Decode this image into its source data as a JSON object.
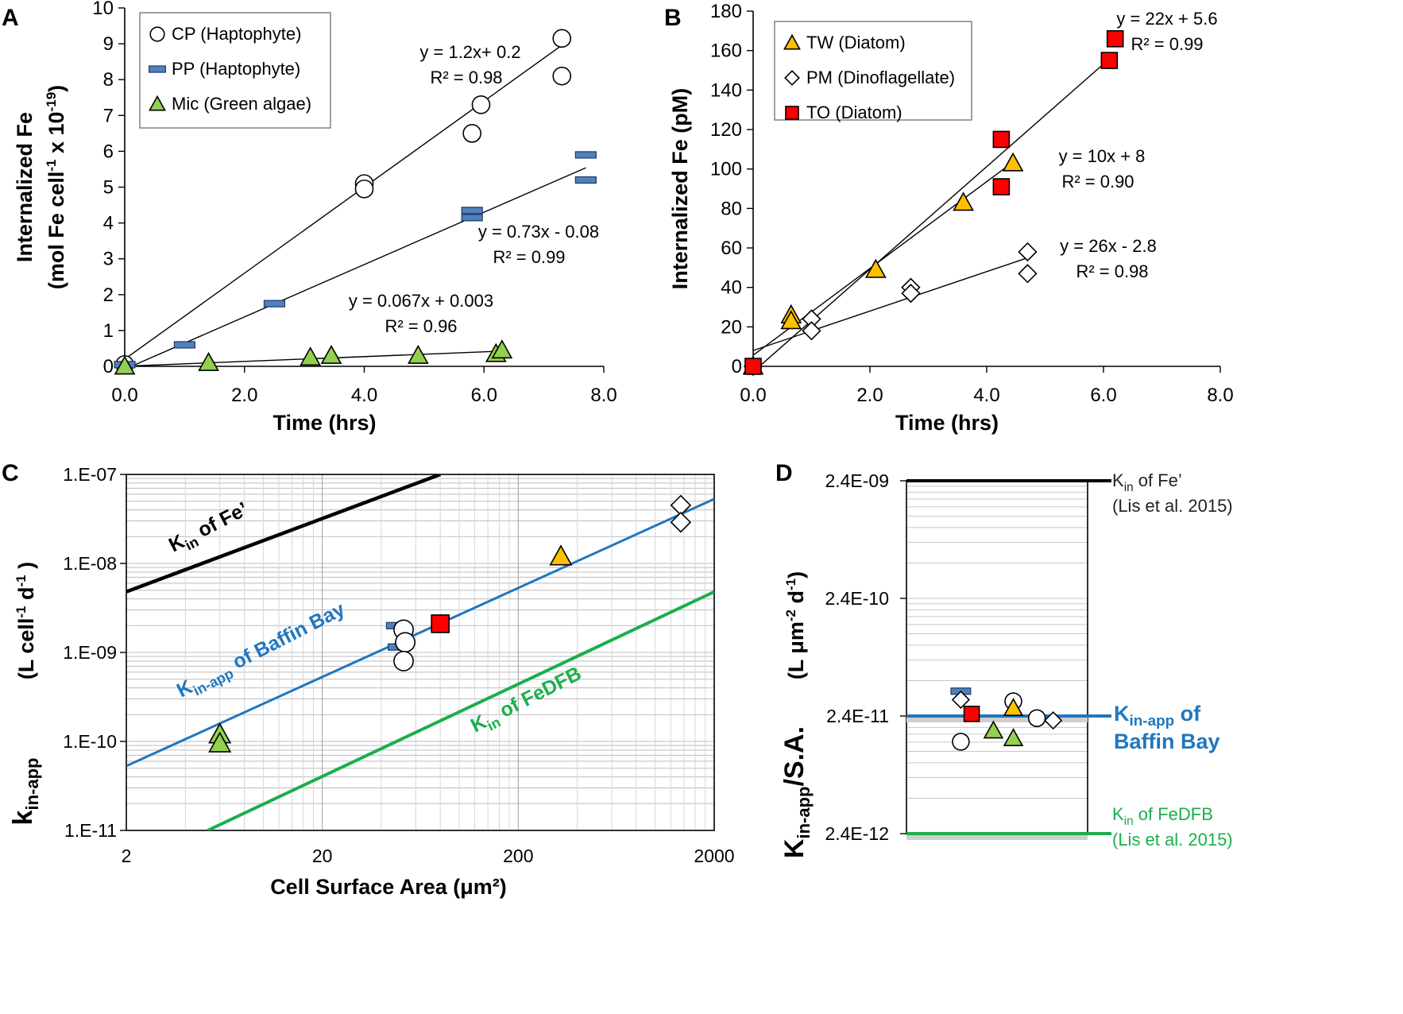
{
  "chart_data": [
    {
      "id": "A",
      "type": "scatter",
      "panel_label": "A",
      "xlabel": "Time (hrs)",
      "ylabel_main": "Internalized Fe",
      "ylabel_sub": "(mol Fe cell",
      "ylabel_sub_sup": "-1",
      "ylabel_sub_tail": "  x 10",
      "ylabel_sub_sup2": "-19",
      "ylabel_sub_end": ")",
      "xlim": [
        0,
        8
      ],
      "ylim": [
        0,
        10
      ],
      "xticks": [
        0,
        2,
        4,
        6,
        8
      ],
      "xtick_labels": [
        "0.0",
        "2.0",
        "4.0",
        "6.0",
        "8.0"
      ],
      "yticks": [
        0,
        1,
        2,
        3,
        4,
        5,
        6,
        7,
        8,
        9,
        10
      ],
      "ytick_labels": [
        "0",
        "1",
        "2",
        "3",
        "4",
        "5",
        "6",
        "7",
        "8",
        "9",
        "10"
      ],
      "series": [
        {
          "name": "CP (Haptophyte)",
          "marker": "circle",
          "fill": "#ffffff",
          "x": [
            0.0,
            4.0,
            4.0,
            5.8,
            5.95,
            7.3,
            7.3
          ],
          "y": [
            0.05,
            5.1,
            4.95,
            6.5,
            7.3,
            9.15,
            8.1
          ],
          "fit": {
            "slope": 1.2,
            "intercept": 0.2,
            "xmin": 0.0,
            "xmax": 7.3
          },
          "eq": "y = 1.2x+ 0.2",
          "r2": "R² = 0.98"
        },
        {
          "name": "PP (Haptophyte)",
          "marker": "dash",
          "fill": "#4f81bd",
          "x": [
            0.0,
            1.0,
            2.5,
            5.8,
            5.8,
            7.7,
            7.7
          ],
          "y": [
            0.05,
            0.6,
            1.75,
            4.35,
            4.15,
            5.9,
            5.2
          ],
          "fit": {
            "slope": 0.73,
            "intercept": -0.08,
            "xmin": 0.0,
            "xmax": 7.7
          },
          "eq": "y = 0.73x - 0.08",
          "r2": "R² = 0.99"
        },
        {
          "name": "Mic (Green algae)",
          "marker": "triangle",
          "fill": "#92d050",
          "x": [
            0.0,
            1.4,
            3.1,
            3.45,
            4.9,
            6.2,
            6.3
          ],
          "y": [
            0.0,
            0.1,
            0.25,
            0.3,
            0.3,
            0.35,
            0.45
          ],
          "fit": {
            "slope": 0.067,
            "intercept": 0.003,
            "xmin": 0.0,
            "xmax": 6.3
          },
          "eq": "y = 0.067x + 0.003",
          "r2": "R² = 0.96"
        }
      ]
    },
    {
      "id": "B",
      "type": "scatter",
      "panel_label": "B",
      "xlabel": "Time (hrs)",
      "ylabel_main": "Internalized  Fe (pM)",
      "xlim": [
        0,
        8
      ],
      "ylim": [
        0,
        180
      ],
      "xticks": [
        0,
        2,
        4,
        6,
        8
      ],
      "xtick_labels": [
        "0.0",
        "2.0",
        "4.0",
        "6.0",
        "8.0"
      ],
      "yticks": [
        0,
        20,
        40,
        60,
        80,
        100,
        120,
        140,
        160,
        180
      ],
      "ytick_labels": [
        "0",
        "20",
        "40",
        "60",
        "80",
        "100",
        "120",
        "140",
        "160",
        "180"
      ],
      "series": [
        {
          "name": "TW (Diatom)",
          "marker": "triangle",
          "fill": "#ffc000",
          "x": [
            0.0,
            0.65,
            0.65,
            2.1,
            3.6,
            4.45
          ],
          "y": [
            0.0,
            26,
            23,
            49,
            83,
            103
          ],
          "fit": {
            "slope": 22,
            "intercept": 5.6,
            "xmin": 0.0,
            "xmax": 4.45
          },
          "eq": "y = 22x + 5.6",
          "r2": "R² = 0.99"
        },
        {
          "name": "PM (Dinoflagellate)",
          "marker": "diamond",
          "fill": "#ffffff",
          "x": [
            0.0,
            1.0,
            1.0,
            2.7,
            2.7,
            4.7,
            4.7
          ],
          "y": [
            0.0,
            24,
            18,
            40,
            37,
            58,
            47
          ],
          "fit": {
            "slope": 10,
            "intercept": 8,
            "xmin": 0.0,
            "xmax": 4.7
          },
          "eq": "y = 10x + 8",
          "r2": "R² = 0.90"
        },
        {
          "name": "TO (Diatom)",
          "marker": "square",
          "fill": "#ff0000",
          "x": [
            0.0,
            4.25,
            4.25,
            6.1,
            6.2
          ],
          "y": [
            0.0,
            115,
            91,
            155,
            166
          ],
          "fit": {
            "slope": 26,
            "intercept": -2.8,
            "xmin": 0.0,
            "xmax": 6.1
          },
          "eq": "y = 26x - 2.8",
          "r2": "R² = 0.98"
        }
      ]
    },
    {
      "id": "C",
      "type": "scatter",
      "panel_label": "C",
      "scale": "log-log",
      "xlabel": "Cell Surface Area (μm²)",
      "ylabel_main": "k",
      "ylabel_main_sub": "in-app",
      "ylabel_unit": "(L cell",
      "ylabel_unit_sup": "-1",
      "ylabel_unit_mid": " d",
      "ylabel_unit_sup2": "-1",
      "ylabel_unit_end": " )",
      "xlim": [
        2,
        2000
      ],
      "ylim": [
        1e-11,
        1e-07
      ],
      "xtick_labels": [
        "2",
        "20",
        "200",
        "2000"
      ],
      "xtick_values": [
        2,
        20,
        200,
        2000
      ],
      "ytick_labels": [
        "1.E-11",
        "1.E-10",
        "1.E-09",
        "1.E-08",
        "1.E-07"
      ],
      "ytick_values": [
        1e-11,
        1e-10,
        1e-09,
        1e-08,
        1e-07
      ],
      "lines": [
        {
          "name": "Kin of Fe'",
          "color": "#000000",
          "x": [
            2,
            80
          ],
          "y": [
            4.8e-09,
            1e-07
          ],
          "label_main": "K",
          "label_sub": "in",
          "label_tail": " of Fe’"
        },
        {
          "name": "Kin-app of Baffin Bay",
          "color": "#1f77bf",
          "x": [
            2,
            2000
          ],
          "y": [
            5.3e-11,
            5.3e-08
          ],
          "label_main": "K",
          "label_sub": "in-app",
          "label_tail": " of Baffin Bay"
        },
        {
          "name": "Kin of FeDFB",
          "color": "#1aaf4b",
          "x": [
            5.2,
            2000
          ],
          "y": [
            1e-11,
            4.8e-09
          ],
          "label_main": "K",
          "label_sub": "in",
          "label_tail": " of FeDFB"
        }
      ],
      "points": [
        {
          "marker": "triangle",
          "fill": "#92d050",
          "x": 6,
          "y": 1.2e-10
        },
        {
          "marker": "triangle",
          "fill": "#92d050",
          "x": 6,
          "y": 9.5e-11
        },
        {
          "marker": "dash",
          "fill": "#4f81bd",
          "x": 48,
          "y": 2e-09
        },
        {
          "marker": "dash",
          "fill": "#4f81bd",
          "x": 49,
          "y": 1.15e-09
        },
        {
          "marker": "circle",
          "fill": "#ffffff",
          "x": 52,
          "y": 1.8e-09
        },
        {
          "marker": "circle",
          "fill": "#ffffff",
          "x": 53,
          "y": 1.3e-09
        },
        {
          "marker": "circle",
          "fill": "#ffffff",
          "x": 52,
          "y": 8e-10
        },
        {
          "marker": "square",
          "fill": "#ff0000",
          "x": 80,
          "y": 2.1e-09
        },
        {
          "marker": "triangle",
          "fill": "#ffc000",
          "x": 330,
          "y": 1.2e-08
        },
        {
          "marker": "diamond",
          "fill": "#ffffff",
          "x": 1350,
          "y": 4.5e-08
        },
        {
          "marker": "diamond",
          "fill": "#ffffff",
          "x": 1350,
          "y": 2.9e-08
        }
      ]
    },
    {
      "id": "D",
      "type": "scatter",
      "panel_label": "D",
      "scale": "log-y",
      "ylabel_main": "K",
      "ylabel_main_sub": "in-app",
      "ylabel_tail": "/S.A.",
      "ylabel_unit": "(L μm",
      "ylabel_unit_sup": "-2",
      "ylabel_unit_mid": " d",
      "ylabel_unit_sup2": "-1",
      "ylabel_unit_end": ")",
      "ylim": [
        2.4e-12,
        2.4e-09
      ],
      "xlim": [
        0,
        1
      ],
      "ytick_labels": [
        "2.4E-12",
        "2.4E-11",
        "2.4E-10",
        "2.4E-09"
      ],
      "ytick_values": [
        2.4e-12,
        2.4e-11,
        2.4e-10,
        2.4e-09
      ],
      "hlines": [
        {
          "name": "Kin of Fe'",
          "color": "#000000",
          "y": 2.4e-09,
          "label_main": "K",
          "label_sub": "in",
          "label_tail": " of Fe’",
          "label_line2": "(Lis et al. 2015)"
        },
        {
          "name": "Kin-app of Baffin Bay",
          "color": "#1f77bf",
          "y": 2.4e-11,
          "label_main": "K",
          "label_sub": "in-app",
          "label_tail": " of",
          "label_line2": "Baffin Bay"
        },
        {
          "name": "Kin of FeDFB",
          "color": "#1aaf4b",
          "y": 2.4e-12,
          "label_main": "K",
          "label_sub": "in",
          "label_tail": " of FeDFB",
          "label_line2": "(Lis et al. 2015)"
        }
      ],
      "points": [
        {
          "marker": "dash",
          "fill": "#4f81bd",
          "x": 0.3,
          "y": 3.9e-11
        },
        {
          "marker": "diamond",
          "fill": "#ffffff",
          "x": 0.3,
          "y": 3.3e-11
        },
        {
          "marker": "circle",
          "fill": "#ffffff",
          "x": 0.3,
          "y": 1.45e-11
        },
        {
          "marker": "square",
          "fill": "#ff0000",
          "x": 0.36,
          "y": 2.5e-11
        },
        {
          "marker": "triangle",
          "fill": "#92d050",
          "x": 0.48,
          "y": 1.8e-11
        },
        {
          "marker": "circle",
          "fill": "#ffffff",
          "x": 0.59,
          "y": 3.2e-11
        },
        {
          "marker": "triangle",
          "fill": "#ffc000",
          "x": 0.59,
          "y": 2.8e-11
        },
        {
          "marker": "triangle",
          "fill": "#92d050",
          "x": 0.59,
          "y": 1.55e-11
        },
        {
          "marker": "circle",
          "fill": "#ffffff",
          "x": 0.72,
          "y": 2.3e-11
        },
        {
          "marker": "diamond",
          "fill": "#ffffff",
          "x": 0.81,
          "y": 2.2e-11
        }
      ]
    }
  ]
}
